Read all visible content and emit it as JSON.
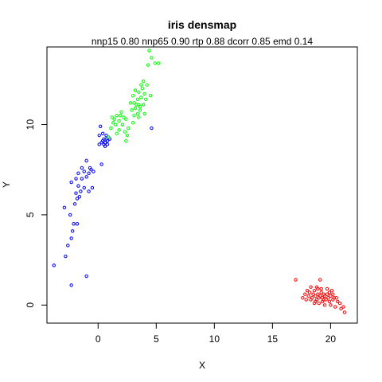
{
  "chart_data": {
    "type": "scatter",
    "title": "iris densmap",
    "subtitle": "nnp15 0.80 nnp65 0.90 rtp 0.88 dcorr 0.85 emd 0.14",
    "xlabel": "X",
    "ylabel": "Y",
    "xlim": [
      -4.4,
      22.3
    ],
    "ylim": [
      -1.0,
      14.3
    ],
    "xticks": [
      0,
      5,
      10,
      15,
      20
    ],
    "yticks": [
      0,
      5,
      10
    ],
    "grid": false,
    "legend": "none",
    "series": [
      {
        "color": "#0000FF",
        "points": [
          [
            -3.8,
            2.2
          ],
          [
            -2.3,
            1.1
          ],
          [
            -1.0,
            1.6
          ],
          [
            -2.8,
            2.7
          ],
          [
            -2.6,
            3.3
          ],
          [
            -2.3,
            3.7
          ],
          [
            -2.2,
            4.1
          ],
          [
            -2.1,
            4.5
          ],
          [
            -1.8,
            4.5
          ],
          [
            -2.9,
            5.4
          ],
          [
            -2.4,
            5.0
          ],
          [
            -2.0,
            5.6
          ],
          [
            -1.8,
            5.9
          ],
          [
            -1.9,
            6.2
          ],
          [
            -1.6,
            6.0
          ],
          [
            -1.5,
            6.3
          ],
          [
            -2.3,
            6.8
          ],
          [
            -1.7,
            6.6
          ],
          [
            -1.2,
            6.5
          ],
          [
            -0.8,
            6.3
          ],
          [
            -0.5,
            6.5
          ],
          [
            -1.4,
            7.0
          ],
          [
            -1.0,
            7.1
          ],
          [
            -0.8,
            7.3
          ],
          [
            -0.6,
            7.5
          ],
          [
            -0.4,
            7.4
          ],
          [
            -1.2,
            7.4
          ],
          [
            -1.7,
            7.3
          ],
          [
            -1.9,
            7.0
          ],
          [
            -1.4,
            7.6
          ],
          [
            -1.0,
            8.0
          ],
          [
            -0.7,
            7.6
          ],
          [
            0.3,
            7.8
          ],
          [
            0.1,
            8.9
          ],
          [
            0.1,
            9.4
          ],
          [
            0.4,
            9.1
          ],
          [
            0.5,
            8.9
          ],
          [
            0.6,
            9.0
          ],
          [
            0.7,
            9.2
          ],
          [
            0.8,
            9.1
          ],
          [
            0.8,
            8.9
          ],
          [
            0.9,
            9.3
          ],
          [
            0.5,
            9.2
          ],
          [
            0.3,
            9.0
          ],
          [
            0.6,
            8.8
          ],
          [
            0.7,
            9.4
          ],
          [
            1.0,
            9.2
          ],
          [
            0.4,
            9.5
          ],
          [
            0.2,
            9.9
          ],
          [
            4.6,
            9.8
          ]
        ]
      },
      {
        "color": "#00FF00",
        "points": [
          [
            0.9,
            9.3
          ],
          [
            1.1,
            9.8
          ],
          [
            1.3,
            10.1
          ],
          [
            1.2,
            10.4
          ],
          [
            1.5,
            10.0
          ],
          [
            1.4,
            10.3
          ],
          [
            1.6,
            10.5
          ],
          [
            1.8,
            10.2
          ],
          [
            1.9,
            10.5
          ],
          [
            2.0,
            10.7
          ],
          [
            2.2,
            10.4
          ],
          [
            2.4,
            10.3
          ],
          [
            2.1,
            10.0
          ],
          [
            1.8,
            9.7
          ],
          [
            1.6,
            9.5
          ],
          [
            2.3,
            9.6
          ],
          [
            2.5,
            9.4
          ],
          [
            2.6,
            9.8
          ],
          [
            2.4,
            9.1
          ],
          [
            3.0,
            10.1
          ],
          [
            3.1,
            10.5
          ],
          [
            3.2,
            10.9
          ],
          [
            3.3,
            11.1
          ],
          [
            3.5,
            11.1
          ],
          [
            3.6,
            11.0
          ],
          [
            3.4,
            11.4
          ],
          [
            3.7,
            11.5
          ],
          [
            3.5,
            11.8
          ],
          [
            3.8,
            12.0
          ],
          [
            3.2,
            11.9
          ],
          [
            3.0,
            11.6
          ],
          [
            4.0,
            11.7
          ],
          [
            4.1,
            11.4
          ],
          [
            3.9,
            11.1
          ],
          [
            3.6,
            10.8
          ],
          [
            3.4,
            10.6
          ],
          [
            4.2,
            12.2
          ],
          [
            3.9,
            12.4
          ],
          [
            3.7,
            12.2
          ],
          [
            3.1,
            11.2
          ],
          [
            2.8,
            11.2
          ],
          [
            2.9,
            10.8
          ],
          [
            3.5,
            10.4
          ],
          [
            4.0,
            10.6
          ],
          [
            4.5,
            11.6
          ],
          [
            4.3,
            13.3
          ],
          [
            4.6,
            13.7
          ],
          [
            4.9,
            13.4
          ],
          [
            4.4,
            14.1
          ],
          [
            5.2,
            13.4
          ]
        ]
      },
      {
        "color": "#FF0000",
        "points": [
          [
            17.0,
            1.4
          ],
          [
            18.3,
            1.0
          ],
          [
            18.8,
            1.0
          ],
          [
            19.1,
            1.4
          ],
          [
            17.8,
            0.6
          ],
          [
            17.9,
            0.3
          ],
          [
            18.1,
            0.5
          ],
          [
            18.2,
            0.7
          ],
          [
            18.4,
            0.4
          ],
          [
            18.5,
            0.6
          ],
          [
            18.6,
            0.8
          ],
          [
            18.7,
            0.5
          ],
          [
            18.8,
            0.3
          ],
          [
            18.9,
            0.6
          ],
          [
            19.0,
            0.4
          ],
          [
            19.1,
            0.5
          ],
          [
            19.2,
            0.7
          ],
          [
            19.3,
            0.4
          ],
          [
            19.4,
            0.6
          ],
          [
            19.5,
            0.5
          ],
          [
            19.6,
            0.3
          ],
          [
            19.7,
            0.6
          ],
          [
            19.8,
            0.4
          ],
          [
            19.9,
            0.7
          ],
          [
            20.0,
            0.5
          ],
          [
            20.1,
            0.8
          ],
          [
            19.4,
            0.3
          ],
          [
            19.0,
            0.1
          ],
          [
            18.6,
            0.1
          ],
          [
            18.3,
            0.3
          ],
          [
            19.7,
            0.9
          ],
          [
            20.2,
            0.3
          ],
          [
            19.5,
            0.0
          ],
          [
            20.0,
            0.0
          ],
          [
            20.4,
            -0.1
          ],
          [
            20.6,
            0.2
          ],
          [
            20.8,
            0.1
          ],
          [
            20.9,
            -0.2
          ],
          [
            21.1,
            -0.1
          ],
          [
            21.2,
            -0.4
          ],
          [
            20.3,
            0.4
          ],
          [
            19.2,
            0.9
          ],
          [
            18.9,
            0.9
          ],
          [
            18.0,
            0.8
          ],
          [
            17.6,
            0.4
          ],
          [
            19.9,
            0.2
          ],
          [
            20.5,
            0.4
          ],
          [
            19.3,
            0.2
          ],
          [
            18.7,
            0.2
          ],
          [
            20.2,
            0.6
          ]
        ]
      }
    ]
  }
}
